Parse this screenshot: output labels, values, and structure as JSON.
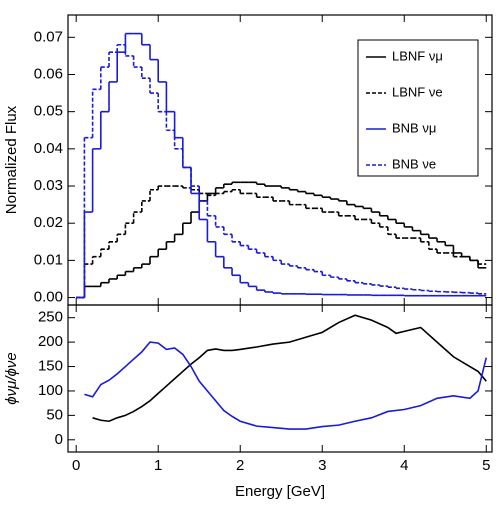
{
  "chart_data": [
    {
      "type": "histogram",
      "ylabel": "Normalized Flux",
      "bins": [
        0,
        0.1,
        0.2,
        0.3,
        0.4,
        0.5,
        0.6,
        0.7,
        0.8,
        0.9,
        1,
        1.1,
        1.2,
        1.3,
        1.4,
        1.5,
        1.6,
        1.7,
        1.8,
        1.9,
        2,
        2.1,
        2.2,
        2.3,
        2.4,
        2.5,
        2.6,
        2.7,
        2.8,
        2.9,
        3,
        3.1,
        3.2,
        3.3,
        3.4,
        3.5,
        3.6,
        3.7,
        3.8,
        3.9,
        4,
        4.1,
        4.2,
        4.3,
        4.4,
        4.5,
        4.6,
        4.7,
        4.8,
        4.9,
        5
      ],
      "series": [
        {
          "name": "LBNF νμ",
          "color": "#000000",
          "dashed": false,
          "values": [
            0,
            0.003,
            0.003,
            0.004,
            0.005,
            0.006,
            0.007,
            0.008,
            0.009,
            0.011,
            0.013,
            0.015,
            0.017,
            0.02,
            0.023,
            0.026,
            0.028,
            0.0295,
            0.0305,
            0.031,
            0.031,
            0.031,
            0.0305,
            0.03,
            0.03,
            0.0295,
            0.029,
            0.0285,
            0.028,
            0.0275,
            0.027,
            0.0265,
            0.026,
            0.025,
            0.0245,
            0.024,
            0.023,
            0.022,
            0.021,
            0.02,
            0.019,
            0.018,
            0.017,
            0.016,
            0.015,
            0.014,
            0.012,
            0.011,
            0.01,
            0.008
          ]
        },
        {
          "name": "LBNF νe",
          "color": "#000000",
          "dashed": true,
          "values": [
            0,
            0.009,
            0.011,
            0.013,
            0.015,
            0.017,
            0.02,
            0.023,
            0.026,
            0.029,
            0.03,
            0.03,
            0.03,
            0.0295,
            0.029,
            0.028,
            0.0275,
            0.028,
            0.0285,
            0.029,
            0.028,
            0.028,
            0.027,
            0.027,
            0.026,
            0.026,
            0.025,
            0.025,
            0.024,
            0.024,
            0.023,
            0.023,
            0.022,
            0.022,
            0.021,
            0.021,
            0.02,
            0.019,
            0.017,
            0.016,
            0.016,
            0.016,
            0.015,
            0.013,
            0.012,
            0.012,
            0.011,
            0.011,
            0.01,
            0.009
          ]
        },
        {
          "name": "BNB νμ",
          "color": "#1a1adc",
          "dashed": false,
          "values": [
            0,
            0.023,
            0.04,
            0.05,
            0.058,
            0.066,
            0.071,
            0.071,
            0.068,
            0.064,
            0.058,
            0.05,
            0.043,
            0.035,
            0.028,
            0.021,
            0.015,
            0.011,
            0.008,
            0.006,
            0.004,
            0.003,
            0.002,
            0.0015,
            0.0012,
            0.001,
            0.001,
            0.001,
            0.0009,
            0.0009,
            0.0008,
            0.0008,
            0.0008,
            0.0007,
            0.0007,
            0.0007,
            0.0006,
            0.0006,
            0.0006,
            0.0006,
            0.0005,
            0.0005,
            0.0005,
            0.0005,
            0.0005,
            0.0005,
            0.0005,
            0.0005,
            0.0005,
            0.0005
          ]
        },
        {
          "name": "BNB νe",
          "color": "#1a1adc",
          "dashed": true,
          "values": [
            0,
            0.043,
            0.056,
            0.062,
            0.066,
            0.068,
            0.065,
            0.062,
            0.059,
            0.055,
            0.05,
            0.045,
            0.04,
            0.035,
            0.03,
            0.026,
            0.022,
            0.019,
            0.017,
            0.015,
            0.014,
            0.013,
            0.012,
            0.011,
            0.01,
            0.009,
            0.0085,
            0.008,
            0.0075,
            0.007,
            0.006,
            0.0055,
            0.005,
            0.0045,
            0.004,
            0.0037,
            0.0034,
            0.0031,
            0.0028,
            0.0025,
            0.0023,
            0.0021,
            0.0019,
            0.0017,
            0.0016,
            0.0015,
            0.0014,
            0.0013,
            0.0012,
            0.001
          ]
        }
      ],
      "xlim": [
        -0.1,
        5.07
      ],
      "xticks": [
        0,
        1,
        2,
        3,
        4,
        5
      ],
      "ylim": [
        -0.002,
        0.076
      ],
      "yticks": [
        {
          "value": 0,
          "label": "0.00"
        },
        0.01,
        0.02,
        0.03,
        0.04,
        0.05,
        0.06,
        0.07
      ],
      "legend": "upper right"
    },
    {
      "type": "line",
      "xlabel": "Energy [GeV]",
      "ylabel": "ϕνμ/ϕνe",
      "series": [
        {
          "color": "#000000",
          "x": [
            0.2,
            0.3,
            0.4,
            0.5,
            0.6,
            0.7,
            0.8,
            0.9,
            1.0,
            1.1,
            1.2,
            1.3,
            1.4,
            1.5,
            1.6,
            1.7,
            1.8,
            1.9,
            2.0,
            2.2,
            2.4,
            2.6,
            2.8,
            3.0,
            3.2,
            3.4,
            3.6,
            3.8,
            3.9,
            4.0,
            4.2,
            4.4,
            4.6,
            4.8,
            4.9,
            5.0
          ],
          "values": [
            45,
            40,
            38,
            45,
            50,
            58,
            68,
            80,
            95,
            110,
            125,
            140,
            155,
            168,
            183,
            186,
            183,
            183,
            185,
            190,
            196,
            200,
            210,
            220,
            240,
            255,
            245,
            230,
            218,
            222,
            230,
            200,
            170,
            150,
            140,
            120
          ]
        },
        {
          "color": "#1a1adc",
          "x": [
            0.1,
            0.2,
            0.3,
            0.4,
            0.5,
            0.6,
            0.7,
            0.8,
            0.9,
            1.0,
            1.1,
            1.2,
            1.3,
            1.4,
            1.5,
            1.6,
            1.7,
            1.8,
            1.9,
            2.0,
            2.2,
            2.4,
            2.6,
            2.8,
            3.0,
            3.2,
            3.4,
            3.6,
            3.8,
            4.0,
            4.2,
            4.4,
            4.6,
            4.8,
            4.9,
            5.0
          ],
          "values": [
            93,
            88,
            113,
            122,
            135,
            150,
            165,
            180,
            200,
            198,
            185,
            188,
            175,
            150,
            120,
            100,
            80,
            60,
            48,
            38,
            28,
            25,
            22,
            22,
            27,
            30,
            38,
            45,
            58,
            62,
            70,
            85,
            90,
            85,
            100,
            168
          ]
        }
      ],
      "xlim": [
        -0.1,
        5.07
      ],
      "xticks": [
        0,
        1,
        2,
        3,
        4,
        5
      ],
      "ylim": [
        -25,
        276
      ],
      "yticks": [
        0,
        50,
        100,
        150,
        200,
        250
      ]
    }
  ]
}
